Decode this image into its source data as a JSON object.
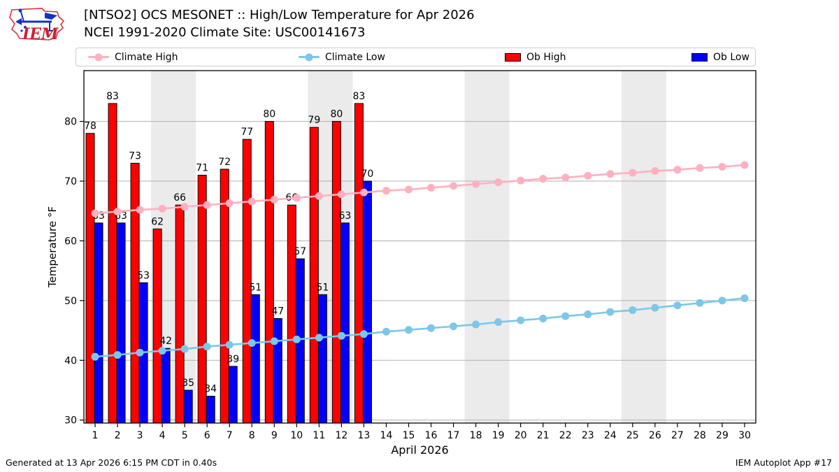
{
  "header": {
    "title_line1": "[NTSO2] OCS MESONET :: High/Low Temperature for Apr 2026",
    "title_line2": "NCEI 1991-2020 Climate Site: USC00141673",
    "logo_text": "IEM"
  },
  "legend": {
    "items": [
      {
        "label": "Climate High",
        "type": "line",
        "color": "#ffb0c0"
      },
      {
        "label": "Climate Low",
        "type": "line",
        "color": "#7cc7e8"
      },
      {
        "label": "Ob High",
        "type": "patch",
        "color": "#ff0000"
      },
      {
        "label": "Ob Low",
        "type": "patch",
        "color": "#0000ff"
      }
    ]
  },
  "chart_data": {
    "type": "bar",
    "x": [
      1,
      2,
      3,
      4,
      5,
      6,
      7,
      8,
      9,
      10,
      11,
      12,
      13,
      14,
      15,
      16,
      17,
      18,
      19,
      20,
      21,
      22,
      23,
      24,
      25,
      26,
      27,
      28,
      29,
      30
    ],
    "series": [
      {
        "name": "Climate High",
        "type": "line",
        "color": "#ffb0c0",
        "values": [
          64.6,
          64.9,
          65.2,
          65.4,
          65.7,
          66.0,
          66.3,
          66.6,
          66.9,
          67.2,
          67.5,
          67.8,
          68.1,
          68.4,
          68.6,
          68.9,
          69.2,
          69.5,
          69.8,
          70.1,
          70.4,
          70.6,
          70.9,
          71.2,
          71.4,
          71.7,
          71.9,
          72.2,
          72.4,
          72.7
        ]
      },
      {
        "name": "Climate Low",
        "type": "line",
        "color": "#7cc7e8",
        "values": [
          40.6,
          40.9,
          41.3,
          41.6,
          41.9,
          42.3,
          42.6,
          42.9,
          43.2,
          43.5,
          43.8,
          44.1,
          44.4,
          44.8,
          45.1,
          45.4,
          45.7,
          46.0,
          46.4,
          46.7,
          47.0,
          47.4,
          47.7,
          48.1,
          48.4,
          48.8,
          49.2,
          49.6,
          50.0,
          50.4
        ]
      },
      {
        "name": "Ob High",
        "type": "bar",
        "color": "#ff0000",
        "labeled": true,
        "values": [
          78,
          83,
          73,
          62,
          66,
          71,
          72,
          77,
          80,
          66,
          79,
          80,
          83
        ]
      },
      {
        "name": "Ob Low",
        "type": "bar",
        "color": "#0000ff",
        "labeled": true,
        "values": [
          63,
          63,
          53,
          42,
          35,
          34,
          39,
          51,
          47,
          57,
          51,
          63,
          70
        ]
      }
    ],
    "title": "[NTSO2] OCS MESONET :: High/Low Temperature for Apr 2026",
    "xlabel": "April 2026",
    "ylabel": "Temperature °F",
    "ylim": [
      29.5,
      88.5
    ],
    "yticks": [
      30,
      40,
      50,
      60,
      70,
      80
    ],
    "grid": "horizontal",
    "gridline_color": "#b0b0b0",
    "weekend_bands": [
      [
        3.5,
        5.5
      ],
      [
        10.5,
        12.5
      ],
      [
        17.5,
        19.5
      ],
      [
        24.5,
        26.5
      ]
    ],
    "band_color": "#ebebeb",
    "legend_position": "top"
  },
  "footer": {
    "left": "Generated at 13 Apr 2026 6:15 PM CDT in 0.40s",
    "right": "IEM Autoplot App #17"
  }
}
